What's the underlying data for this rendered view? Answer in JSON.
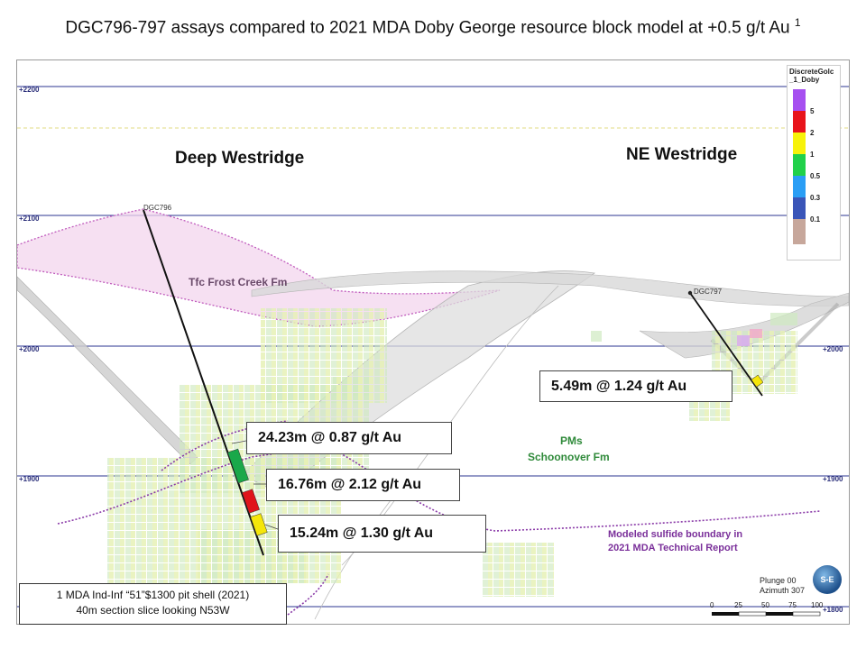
{
  "title": {
    "text": "DGC796-797 assays compared to 2021 MDA Doby George resource block model at +0.5 g/t Au",
    "superscript": "1"
  },
  "elevations": [
    "+2200",
    "+2100",
    "+2000",
    "+1900",
    "+1800"
  ],
  "regions": {
    "deep_westridge": "Deep Westridge",
    "ne_westridge": "NE Westridge"
  },
  "formations": {
    "frost_creek": "Tfc Frost Creek Fm",
    "schoonover_line1": "PMs",
    "schoonover_line2": "Schoonover Fm"
  },
  "drill_holes": {
    "dgc796": "DGC796",
    "dgc797": "DGC797"
  },
  "intercepts": [
    {
      "label": "24.23m @ 0.87 g/t Au",
      "color": "#1aa84a"
    },
    {
      "label": "16.76m @ 2.12 g/t Au",
      "color": "#e0141b"
    },
    {
      "label": "15.24m @ 1.30 g/t Au",
      "color": "#f5e60a"
    },
    {
      "label": "5.49m @ 1.24 g/t Au",
      "color": "#f5e60a"
    }
  ],
  "legend": {
    "title_line1": "DiscreteGolc",
    "title_line2": "_1_Doby",
    "items": [
      {
        "label": "5",
        "color": "#a64ff0"
      },
      {
        "label": "2",
        "color": "#e8141b"
      },
      {
        "label": "1",
        "color": "#f7f20a"
      },
      {
        "label": "0.5",
        "color": "#21d14a"
      },
      {
        "label": "0.3",
        "color": "#2a9ef5"
      },
      {
        "label": "0.1",
        "color": "#3a55b8"
      }
    ],
    "below_color": "#c7a79b"
  },
  "sulfide_note": {
    "line1": "Modeled sulfide boundary in",
    "line2": "2021 MDA Technical  Report"
  },
  "footnote": {
    "line1": "1  MDA Ind-Inf “51”$1300 pit shell (2021)",
    "line2": "40m section slice looking N53W"
  },
  "plunge": {
    "line1": "Plunge 00",
    "line2": "Azimuth 307"
  },
  "scale_ticks": [
    "0",
    "25",
    "50",
    "75",
    "100"
  ],
  "logo_text": "S-E"
}
